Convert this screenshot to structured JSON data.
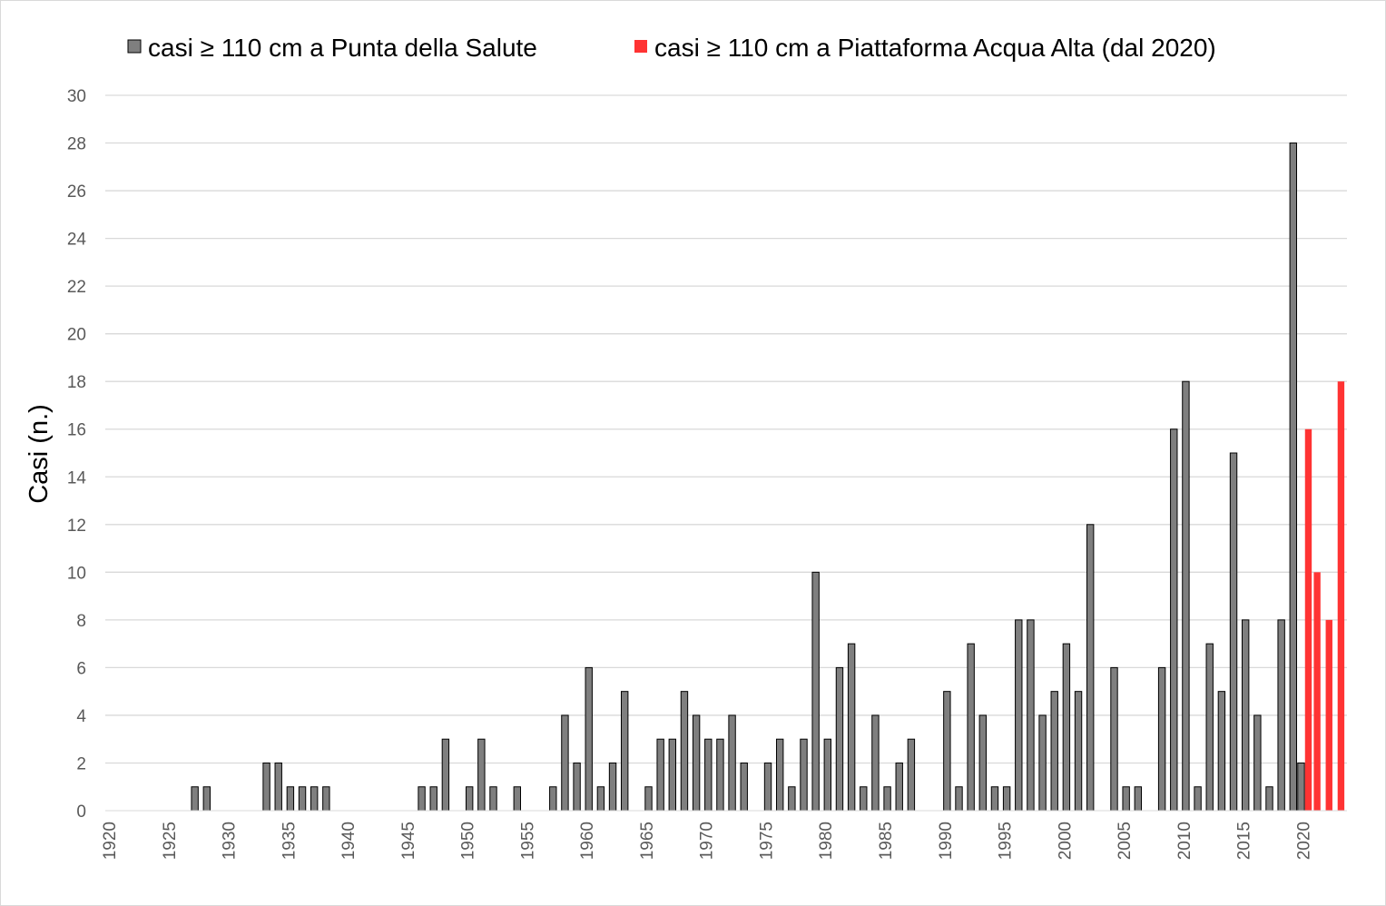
{
  "chart_data": {
    "type": "bar",
    "title": "",
    "xlabel": "",
    "ylabel": "Casi (n.)",
    "ylim": [
      0,
      30
    ],
    "yticks": [
      0,
      2,
      4,
      6,
      8,
      10,
      12,
      14,
      16,
      18,
      20,
      22,
      24,
      26,
      28,
      30
    ],
    "xlim": [
      1920,
      2023
    ],
    "xticks": [
      1920,
      1925,
      1930,
      1935,
      1940,
      1945,
      1950,
      1955,
      1960,
      1965,
      1970,
      1975,
      1980,
      1985,
      1990,
      1995,
      2000,
      2005,
      2010,
      2015,
      2020
    ],
    "grid": true,
    "legend_position": "top",
    "series": [
      {
        "name": "casi ≥ 110 cm a Punta della Salute",
        "color": "#7f7f7f",
        "points": [
          {
            "x": 1927,
            "y": 1
          },
          {
            "x": 1928,
            "y": 1
          },
          {
            "x": 1933,
            "y": 2
          },
          {
            "x": 1934,
            "y": 2
          },
          {
            "x": 1935,
            "y": 1
          },
          {
            "x": 1936,
            "y": 1
          },
          {
            "x": 1937,
            "y": 1
          },
          {
            "x": 1938,
            "y": 1
          },
          {
            "x": 1946,
            "y": 1
          },
          {
            "x": 1947,
            "y": 1
          },
          {
            "x": 1948,
            "y": 3
          },
          {
            "x": 1950,
            "y": 1
          },
          {
            "x": 1951,
            "y": 3
          },
          {
            "x": 1952,
            "y": 1
          },
          {
            "x": 1954,
            "y": 1
          },
          {
            "x": 1957,
            "y": 1
          },
          {
            "x": 1958,
            "y": 4
          },
          {
            "x": 1959,
            "y": 2
          },
          {
            "x": 1960,
            "y": 6
          },
          {
            "x": 1961,
            "y": 1
          },
          {
            "x": 1962,
            "y": 2
          },
          {
            "x": 1963,
            "y": 5
          },
          {
            "x": 1965,
            "y": 1
          },
          {
            "x": 1966,
            "y": 3
          },
          {
            "x": 1967,
            "y": 3
          },
          {
            "x": 1968,
            "y": 5
          },
          {
            "x": 1969,
            "y": 4
          },
          {
            "x": 1970,
            "y": 3
          },
          {
            "x": 1971,
            "y": 3
          },
          {
            "x": 1972,
            "y": 4
          },
          {
            "x": 1973,
            "y": 2
          },
          {
            "x": 1975,
            "y": 2
          },
          {
            "x": 1976,
            "y": 3
          },
          {
            "x": 1977,
            "y": 1
          },
          {
            "x": 1978,
            "y": 3
          },
          {
            "x": 1979,
            "y": 10
          },
          {
            "x": 1980,
            "y": 3
          },
          {
            "x": 1981,
            "y": 6
          },
          {
            "x": 1982,
            "y": 7
          },
          {
            "x": 1983,
            "y": 1
          },
          {
            "x": 1984,
            "y": 4
          },
          {
            "x": 1985,
            "y": 1
          },
          {
            "x": 1986,
            "y": 2
          },
          {
            "x": 1987,
            "y": 3
          },
          {
            "x": 1990,
            "y": 5
          },
          {
            "x": 1991,
            "y": 1
          },
          {
            "x": 1992,
            "y": 7
          },
          {
            "x": 1993,
            "y": 4
          },
          {
            "x": 1994,
            "y": 1
          },
          {
            "x": 1995,
            "y": 1
          },
          {
            "x": 1996,
            "y": 8
          },
          {
            "x": 1997,
            "y": 8
          },
          {
            "x": 1998,
            "y": 4
          },
          {
            "x": 1999,
            "y": 5
          },
          {
            "x": 2000,
            "y": 7
          },
          {
            "x": 2001,
            "y": 5
          },
          {
            "x": 2002,
            "y": 12
          },
          {
            "x": 2004,
            "y": 6
          },
          {
            "x": 2005,
            "y": 1
          },
          {
            "x": 2006,
            "y": 1
          },
          {
            "x": 2008,
            "y": 6
          },
          {
            "x": 2009,
            "y": 16
          },
          {
            "x": 2010,
            "y": 18
          },
          {
            "x": 2011,
            "y": 1
          },
          {
            "x": 2012,
            "y": 7
          },
          {
            "x": 2013,
            "y": 5
          },
          {
            "x": 2014,
            "y": 15
          },
          {
            "x": 2015,
            "y": 8
          },
          {
            "x": 2016,
            "y": 4
          },
          {
            "x": 2017,
            "y": 1
          },
          {
            "x": 2018,
            "y": 8
          },
          {
            "x": 2019,
            "y": 28
          },
          {
            "x": 2020,
            "y": 2
          }
        ]
      },
      {
        "name": "casi ≥ 110 cm a Piattaforma Acqua Alta (dal 2020)",
        "color": "#ff3333",
        "points": [
          {
            "x": 2020,
            "y": 16
          },
          {
            "x": 2021,
            "y": 10
          },
          {
            "x": 2022,
            "y": 8
          },
          {
            "x": 2023,
            "y": 18
          }
        ]
      }
    ]
  }
}
